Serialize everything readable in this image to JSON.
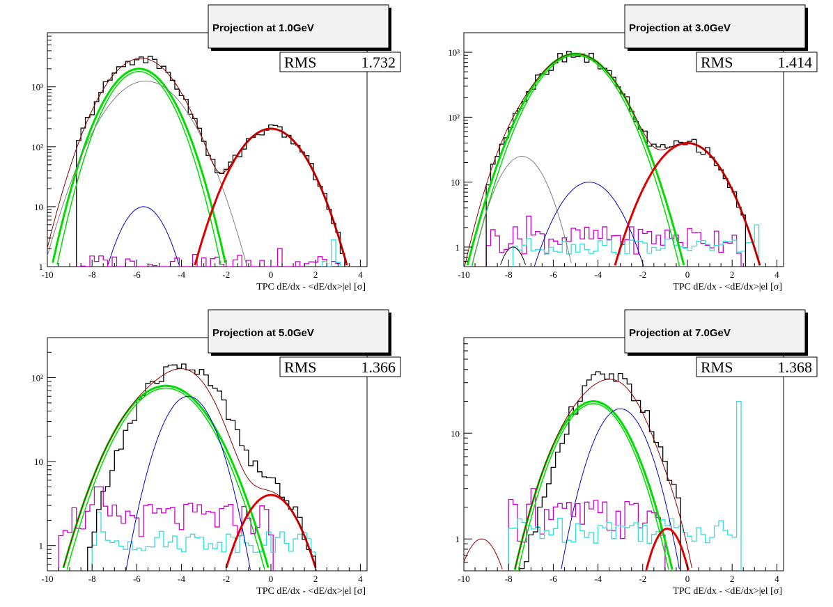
{
  "chart_data": [
    {
      "type": "line",
      "title": "Projection at 1.0GeV",
      "stats": {
        "label": "RMS",
        "value": "1.732"
      },
      "xlabel": "TPC dE/dx - <dE/dx>|el [σ]",
      "xlim": [
        -10,
        4.3
      ],
      "ylim": [
        1,
        8000
      ],
      "yscale": "log",
      "xticks": [
        -10,
        -8,
        -6,
        -4,
        -2,
        0,
        2,
        4
      ],
      "yticks": [
        1,
        10,
        100,
        1000
      ],
      "ytick_labels": [
        "1",
        "10",
        "10²",
        "10³"
      ],
      "data_hist": {
        "range": [
          -8.7,
          3.2
        ],
        "peaks": [
          {
            "A": 3000,
            "mu": -5.8,
            "s": 1.1
          },
          {
            "A": 200,
            "mu": 0.0,
            "s": 1.05
          }
        ]
      },
      "magenta_hist": {
        "range": [
          -8.7,
          3.0
        ],
        "base": 1.0,
        "spike": {
          "x": 0.3,
          "value": 2.0
        }
      },
      "cyan_hist": {
        "range": [
          2.3,
          3.0
        ],
        "base": 1.0,
        "spike": {
          "x": 2.7,
          "value": 2.8
        }
      },
      "fits": [
        {
          "color": "#00dd00",
          "width": 3,
          "A": 2000,
          "mu": -5.9,
          "s": 1.0
        },
        {
          "color": "#00dd00",
          "width": 1.5,
          "A": 1800,
          "mu": -5.9,
          "s": 0.95
        },
        {
          "color": "#808080",
          "width": 1,
          "A": 1250,
          "mu": -5.6,
          "s": 1.2
        },
        {
          "color": "#0000cc",
          "width": 1,
          "A": 10,
          "mu": -5.7,
          "s": 0.75
        },
        {
          "color": "#dd0000",
          "width": 3,
          "A": 200,
          "mu": 0.0,
          "s": 1.05
        },
        {
          "color": "#8b0000",
          "width": 1,
          "sum": [
            {
              "A": 3000,
              "mu": -5.8,
              "s": 1.1
            },
            {
              "A": 200,
              "mu": 0.0,
              "s": 1.05
            }
          ]
        }
      ]
    },
    {
      "type": "line",
      "title": "Projection at 3.0GeV",
      "stats": {
        "label": "RMS",
        "value": "1.414"
      },
      "xlabel": "TPC dE/dx - <dE/dx>|el [σ]",
      "xlim": [
        -10,
        4.3
      ],
      "ylim": [
        0.5,
        2000
      ],
      "yscale": "log",
      "xticks": [
        -10,
        -8,
        -6,
        -4,
        -2,
        0,
        2,
        4
      ],
      "yticks": [
        1,
        10,
        100,
        1000
      ],
      "ytick_labels": [
        "1",
        "10",
        "10²",
        "10³"
      ],
      "data_hist": {
        "range": [
          -9.0,
          2.5
        ],
        "peaks": [
          {
            "A": 950,
            "mu": -5.0,
            "s": 1.25
          },
          {
            "A": 40,
            "mu": 0.0,
            "s": 1.1
          },
          {
            "A": 25,
            "mu": -7.4,
            "s": 0.7
          }
        ]
      },
      "magenta_hist": {
        "range": [
          -9.0,
          2.3
        ],
        "base": 1.3,
        "spike": {
          "x": -7.2,
          "value": 3.0
        }
      },
      "cyan_hist": {
        "range": [
          -7.8,
          3.1
        ],
        "base": 1.0,
        "spike": {
          "x": 3.0,
          "value": 2.2
        }
      },
      "fits": [
        {
          "color": "#00dd00",
          "width": 3,
          "A": 950,
          "mu": -5.0,
          "s": 1.25
        },
        {
          "color": "#00dd00",
          "width": 1.5,
          "A": 900,
          "mu": -5.0,
          "s": 1.2
        },
        {
          "color": "#808080",
          "width": 1,
          "A": 25,
          "mu": -7.4,
          "s": 0.8
        },
        {
          "color": "#0000cc",
          "width": 1,
          "A": 10,
          "mu": -4.4,
          "s": 1.0
        },
        {
          "color": "#000000",
          "width": 1,
          "A": 1,
          "mu": -7.8,
          "s": 0.5
        },
        {
          "color": "#dd0000",
          "width": 3,
          "A": 40,
          "mu": 0.0,
          "s": 1.1
        },
        {
          "color": "#8b0000",
          "width": 1,
          "sum": [
            {
              "A": 950,
              "mu": -5.0,
              "s": 1.25
            },
            {
              "A": 40,
              "mu": 0.0,
              "s": 1.1
            },
            {
              "A": 25,
              "mu": -7.4,
              "s": 0.8
            }
          ]
        }
      ]
    },
    {
      "type": "line",
      "title": "Projection at 5.0GeV",
      "stats": {
        "label": "RMS",
        "value": "1.366"
      },
      "xlabel": "TPC dE/dx - <dE/dx>|el [σ]",
      "xlim": [
        -10,
        4.3
      ],
      "ylim": [
        0.5,
        300
      ],
      "yscale": "log",
      "xticks": [
        -10,
        -8,
        -6,
        -4,
        -2,
        0,
        2,
        4
      ],
      "yticks": [
        1,
        10,
        100
      ],
      "ytick_labels": [
        "1",
        "10",
        "10²"
      ],
      "data_hist": {
        "range": [
          -8.2,
          2.0
        ],
        "peaks": [
          {
            "A": 140,
            "mu": -4.0,
            "s": 1.3
          },
          {
            "A": 4.5,
            "mu": 0.0,
            "s": 1.0
          }
        ]
      },
      "magenta_hist": {
        "range": [
          -9.5,
          0.0
        ],
        "base": 2.0,
        "spike": {
          "x": -7.8,
          "value": 5.0
        }
      },
      "cyan_hist": {
        "range": [
          -8.0,
          2.0
        ],
        "base": 1.1,
        "spike": {
          "x": -7.8,
          "value": 2.5
        }
      },
      "fits": [
        {
          "color": "#00dd00",
          "width": 3,
          "A": 80,
          "mu": -4.7,
          "s": 1.45
        },
        {
          "color": "#00dd00",
          "width": 1.5,
          "A": 75,
          "mu": -4.7,
          "s": 1.4
        },
        {
          "color": "#0000cc",
          "width": 1,
          "A": 60,
          "mu": -3.7,
          "s": 0.9
        },
        {
          "color": "#dd0000",
          "width": 3,
          "A": 4,
          "mu": 0.0,
          "s": 1.0
        },
        {
          "color": "#8b0000",
          "width": 1,
          "sum": [
            {
              "A": 80,
              "mu": -4.7,
              "s": 1.45
            },
            {
              "A": 60,
              "mu": -3.7,
              "s": 0.9
            },
            {
              "A": 4,
              "mu": 0.0,
              "s": 1.0
            }
          ]
        }
      ]
    },
    {
      "type": "line",
      "title": "Projection at 7.0GeV",
      "stats": {
        "label": "RMS",
        "value": "1.368"
      },
      "xlabel": "TPC dE/dx - <dE/dx>|el [σ]",
      "xlim": [
        -10,
        4.3
      ],
      "ylim": [
        0.5,
        80
      ],
      "yscale": "log",
      "xticks": [
        -10,
        -8,
        -6,
        -4,
        -2,
        0,
        2,
        4
      ],
      "yticks": [
        1,
        10
      ],
      "ytick_labels": [
        "1",
        "10"
      ],
      "data_hist": {
        "range": [
          -7.5,
          -0.3
        ],
        "peaks": [
          {
            "A": 35,
            "mu": -3.5,
            "s": 1.3
          }
        ]
      },
      "magenta_hist": {
        "range": [
          -8.0,
          -1.0
        ],
        "base": 1.5,
        "spike": {
          "x": -7.0,
          "value": 3.0
        }
      },
      "cyan_hist": {
        "range": [
          -8.0,
          2.3
        ],
        "base": 1.2,
        "spike": {
          "x": 2.2,
          "value": 20.0
        }
      },
      "fits": [
        {
          "color": "#00dd00",
          "width": 3,
          "A": 20,
          "mu": -4.2,
          "s": 1.3
        },
        {
          "color": "#00dd00",
          "width": 1.5,
          "A": 19,
          "mu": -4.2,
          "s": 1.25
        },
        {
          "color": "#0000cc",
          "width": 1,
          "A": 17,
          "mu": -3.0,
          "s": 1.0
        },
        {
          "color": "#dd0000",
          "width": 3,
          "A": 1.25,
          "mu": -0.9,
          "s": 0.7
        },
        {
          "color": "#8b0000",
          "width": 1,
          "A": 1.0,
          "mu": -9.2,
          "s": 0.8
        },
        {
          "color": "#8b0000",
          "width": 1,
          "sum": [
            {
              "A": 20,
              "mu": -4.2,
              "s": 1.3
            },
            {
              "A": 17,
              "mu": -3.0,
              "s": 1.0
            },
            {
              "A": 1.25,
              "mu": -0.9,
              "s": 0.7
            }
          ]
        }
      ]
    }
  ]
}
